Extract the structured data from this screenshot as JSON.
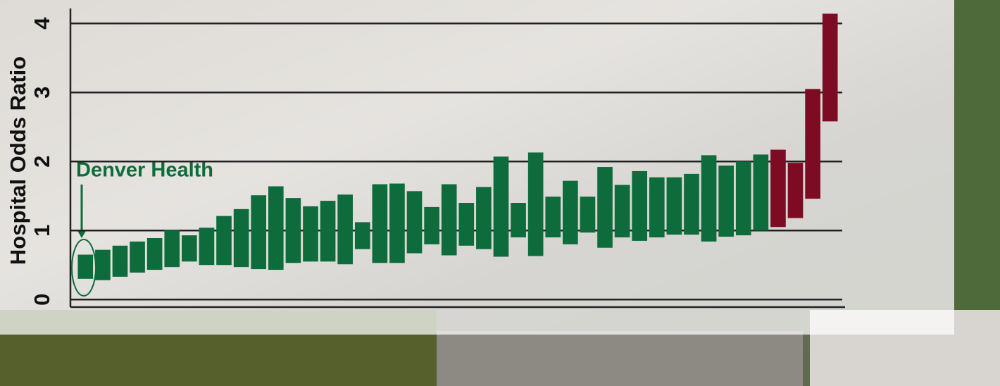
{
  "chart_data": {
    "type": "floating-bar",
    "ylabel": "Hospital Odds Ratio",
    "annotation": "Denver Health",
    "low": [
      0.3,
      0.28,
      0.33,
      0.39,
      0.43,
      0.47,
      0.55,
      0.5,
      0.5,
      0.47,
      0.44,
      0.43,
      0.53,
      0.55,
      0.55,
      0.51,
      0.73,
      0.53,
      0.53,
      0.67,
      0.8,
      0.64,
      0.78,
      0.73,
      0.62,
      0.9,
      0.63,
      0.9,
      0.8,
      0.97,
      0.75,
      0.9,
      0.85,
      0.9,
      0.94,
      0.94,
      0.84,
      0.91,
      0.93,
      1.0,
      1.05,
      1.18,
      1.46,
      2.58
    ],
    "high": [
      0.65,
      0.72,
      0.78,
      0.84,
      0.89,
      1.01,
      0.93,
      1.04,
      1.21,
      1.31,
      1.51,
      1.64,
      1.47,
      1.35,
      1.43,
      1.52,
      1.12,
      1.67,
      1.68,
      1.57,
      1.34,
      1.67,
      1.4,
      1.63,
      2.07,
      1.4,
      2.13,
      1.49,
      1.72,
      1.49,
      1.92,
      1.66,
      1.86,
      1.77,
      1.77,
      1.82,
      2.09,
      1.94,
      2.0,
      2.1,
      2.17,
      1.98,
      3.05,
      4.14
    ],
    "colors": [
      "#0e6b3b",
      "#0e6b3b",
      "#0e6b3b",
      "#0e6b3b",
      "#0e6b3b",
      "#0e6b3b",
      "#0e6b3b",
      "#0e6b3b",
      "#0e6b3b",
      "#0e6b3b",
      "#0e6b3b",
      "#0e6b3b",
      "#0e6b3b",
      "#0e6b3b",
      "#0e6b3b",
      "#0e6b3b",
      "#0e6b3b",
      "#0e6b3b",
      "#0e6b3b",
      "#0e6b3b",
      "#0e6b3b",
      "#0e6b3b",
      "#0e6b3b",
      "#0e6b3b",
      "#0e6b3b",
      "#0e6b3b",
      "#0e6b3b",
      "#0e6b3b",
      "#0e6b3b",
      "#0e6b3b",
      "#0e6b3b",
      "#0e6b3b",
      "#0e6b3b",
      "#0e6b3b",
      "#0e6b3b",
      "#0e6b3b",
      "#0e6b3b",
      "#0e6b3b",
      "#0e6b3b",
      "#0e6b3b",
      "#7d0b24",
      "#7d0b24",
      "#7d0b24",
      "#7d0b24"
    ],
    "ylim": [
      -0.11,
      4.2
    ],
    "yticks": [
      0,
      1,
      2,
      3,
      4
    ],
    "grid": true
  }
}
